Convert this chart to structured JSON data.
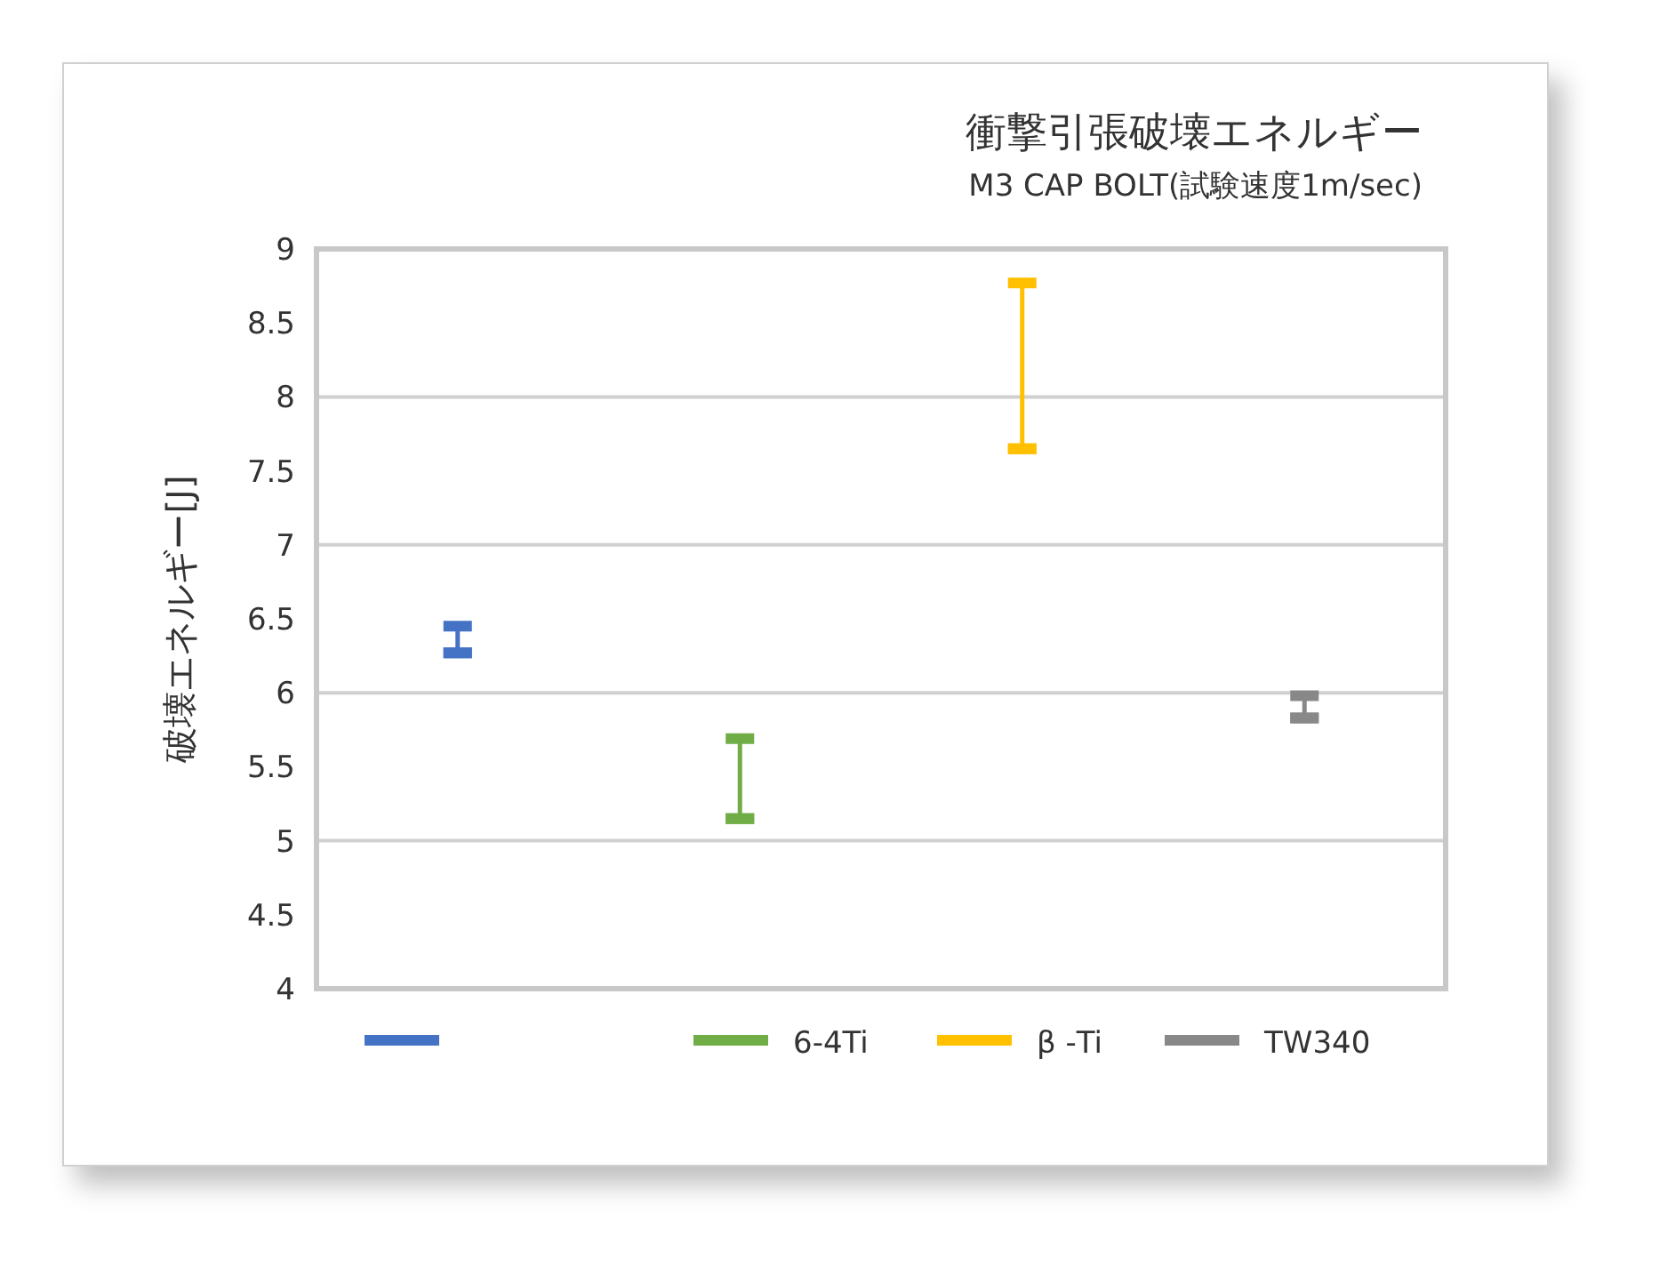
{
  "chart_data": {
    "type": "scatter",
    "title": "衝撃引張破壊エネルギー",
    "subtitle": "M3 CAP BOLT(試験速度1m/sec)",
    "ylabel": "破壊エネルギー[J]",
    "categories": [
      null,
      null,
      null,
      null
    ],
    "series": [
      {
        "color": "#4472c4",
        "values": [
          6.27,
          null,
          null,
          null
        ],
        "errors": [
          [
            6.27,
            6.45
          ],
          null,
          null,
          null
        ]
      },
      {
        "name": "6-4Ti",
        "color": "#70ad47",
        "values": [
          null,
          5.15,
          null,
          null
        ],
        "errors": [
          null,
          [
            5.15,
            5.69
          ],
          null,
          null
        ]
      },
      {
        "name": "β -Ti",
        "color": "#ffc000",
        "values": [
          null,
          null,
          7.65,
          null
        ],
        "errors": [
          null,
          null,
          [
            7.65,
            8.77
          ],
          null
        ]
      },
      {
        "name": "TW340",
        "color": "#888888",
        "values": [
          null,
          null,
          null,
          5.83
        ],
        "errors": [
          null,
          null,
          null,
          [
            5.83,
            5.98
          ]
        ]
      }
    ],
    "ylim": [
      4,
      9
    ],
    "yticks": [
      4,
      4.5,
      5,
      5.5,
      6,
      6.5,
      7,
      7.5,
      8,
      8.5,
      9
    ],
    "grid": "y",
    "legend": "bottom"
  }
}
